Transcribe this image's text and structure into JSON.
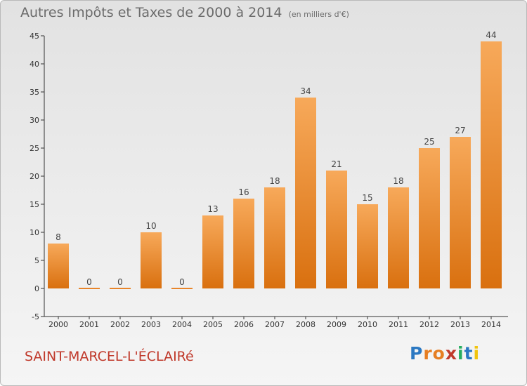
{
  "chart_data": {
    "type": "bar",
    "title": "Autres Impôts et Taxes de 2000 à 2014",
    "subtitle": "(en milliers d'€)",
    "categories": [
      "2000",
      "2001",
      "2002",
      "2003",
      "2004",
      "2005",
      "2006",
      "2007",
      "2008",
      "2009",
      "2010",
      "2011",
      "2012",
      "2013",
      "2014"
    ],
    "values": [
      8,
      0,
      0,
      10,
      0,
      13,
      16,
      18,
      34,
      21,
      15,
      18,
      25,
      27,
      44
    ],
    "ylim": [
      -5,
      45
    ],
    "yticks": [
      -5,
      0,
      5,
      10,
      15,
      20,
      25,
      30,
      35,
      40,
      45
    ],
    "grid": false,
    "bar_color": "#f0922f"
  },
  "footer": {
    "commune": "SAINT-MARCEL-L'ÉCLAIRé",
    "logo_letters": [
      {
        "ch": "P",
        "color": "#2b78c2"
      },
      {
        "ch": "r",
        "color": "#e67e22"
      },
      {
        "ch": "o",
        "color": "#e67e22"
      },
      {
        "ch": "x",
        "color": "#c0392b"
      },
      {
        "ch": "i",
        "color": "#27ae60"
      },
      {
        "ch": "t",
        "color": "#2b78c2"
      },
      {
        "ch": "i",
        "color": "#f1c40f"
      }
    ]
  }
}
